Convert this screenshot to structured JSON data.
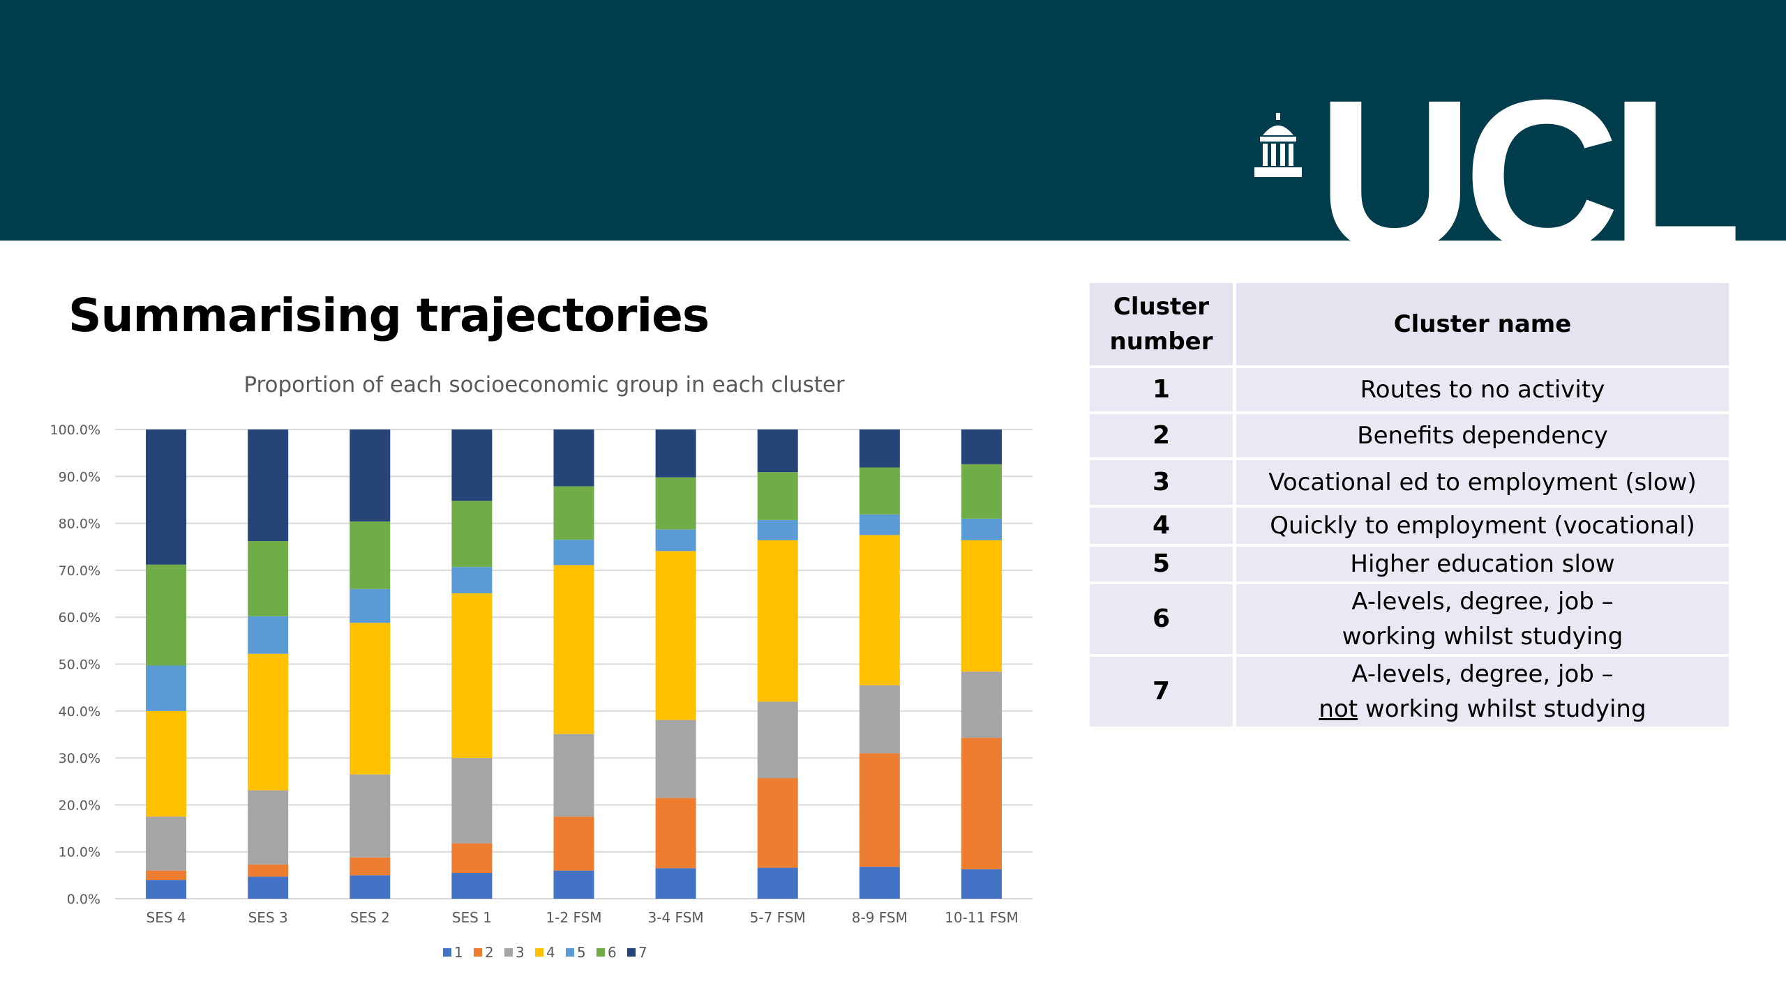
{
  "slide": {
    "title": "Summarising trajectories",
    "logo": "UCL",
    "logo_icon": "ucl-portico-icon"
  },
  "colors": {
    "banner": "#003d4c",
    "series": [
      "#4472c4",
      "#ed7d31",
      "#a5a5a5",
      "#ffc000",
      "#5b9bd5",
      "#70ad47",
      "#264478"
    ]
  },
  "chart_data": {
    "type": "bar",
    "stacked": true,
    "title": "Proportion of each socioeconomic group in each cluster",
    "xlabel": "",
    "ylabel": "",
    "ylim": [
      0,
      100
    ],
    "yticks": [
      0,
      10,
      20,
      30,
      40,
      50,
      60,
      70,
      80,
      90,
      100
    ],
    "ytick_labels": [
      "0.0%",
      "10.0%",
      "20.0%",
      "30.0%",
      "40.0%",
      "50.0%",
      "60.0%",
      "70.0%",
      "80.0%",
      "90.0%",
      "100.0%"
    ],
    "grid": true,
    "legend": "bottom",
    "categories": [
      "SES 4",
      "SES 3",
      "SES 2",
      "SES 1",
      "1-2 FSM",
      "3-4 FSM",
      "5-7 FSM",
      "8-9 FSM",
      "10-11 FSM"
    ],
    "series": [
      {
        "name": "1",
        "color": "#4472c4",
        "values": [
          4.0,
          4.7,
          5.0,
          5.5,
          6.0,
          6.5,
          6.6,
          6.8,
          6.3
        ]
      },
      {
        "name": "2",
        "color": "#ed7d31",
        "values": [
          2.0,
          2.6,
          3.8,
          6.3,
          11.5,
          15.0,
          19.1,
          24.2,
          28.0
        ]
      },
      {
        "name": "3",
        "color": "#a5a5a5",
        "values": [
          11.5,
          15.8,
          17.7,
          18.2,
          17.6,
          16.6,
          16.3,
          14.5,
          14.1
        ]
      },
      {
        "name": "4",
        "color": "#ffc000",
        "values": [
          22.5,
          29.1,
          32.3,
          35.1,
          36.0,
          36.0,
          34.4,
          32.0,
          28.0
        ]
      },
      {
        "name": "5",
        "color": "#5b9bd5",
        "values": [
          9.7,
          8.0,
          7.2,
          5.6,
          5.4,
          4.6,
          4.3,
          4.4,
          4.6
        ]
      },
      {
        "name": "6",
        "color": "#70ad47",
        "values": [
          21.5,
          16.0,
          14.4,
          14.1,
          11.4,
          11.1,
          10.2,
          10.0,
          11.6
        ]
      },
      {
        "name": "7",
        "color": "#264478",
        "values": [
          28.8,
          23.8,
          19.6,
          15.2,
          12.1,
          10.2,
          9.1,
          8.1,
          7.4
        ]
      }
    ]
  },
  "table": {
    "headers": {
      "number": [
        "Cluster",
        "number"
      ],
      "name": "Cluster name"
    },
    "rows": [
      {
        "number": "1",
        "name": [
          "Routes to no activity"
        ]
      },
      {
        "number": "2",
        "name": [
          "Benefits dependency"
        ]
      },
      {
        "number": "3",
        "name": [
          "Vocational ed to employment (slow)"
        ]
      },
      {
        "number": "4",
        "name": [
          "Quickly to employment (vocational)"
        ]
      },
      {
        "number": "5",
        "name": [
          "Higher education slow"
        ]
      },
      {
        "number": "6",
        "name": [
          "A-levels, degree, job –",
          "working whilst studying"
        ]
      },
      {
        "number": "7",
        "name": [
          "A-levels, degree, job –",
          "not",
          " working whilst studying"
        ]
      }
    ]
  }
}
